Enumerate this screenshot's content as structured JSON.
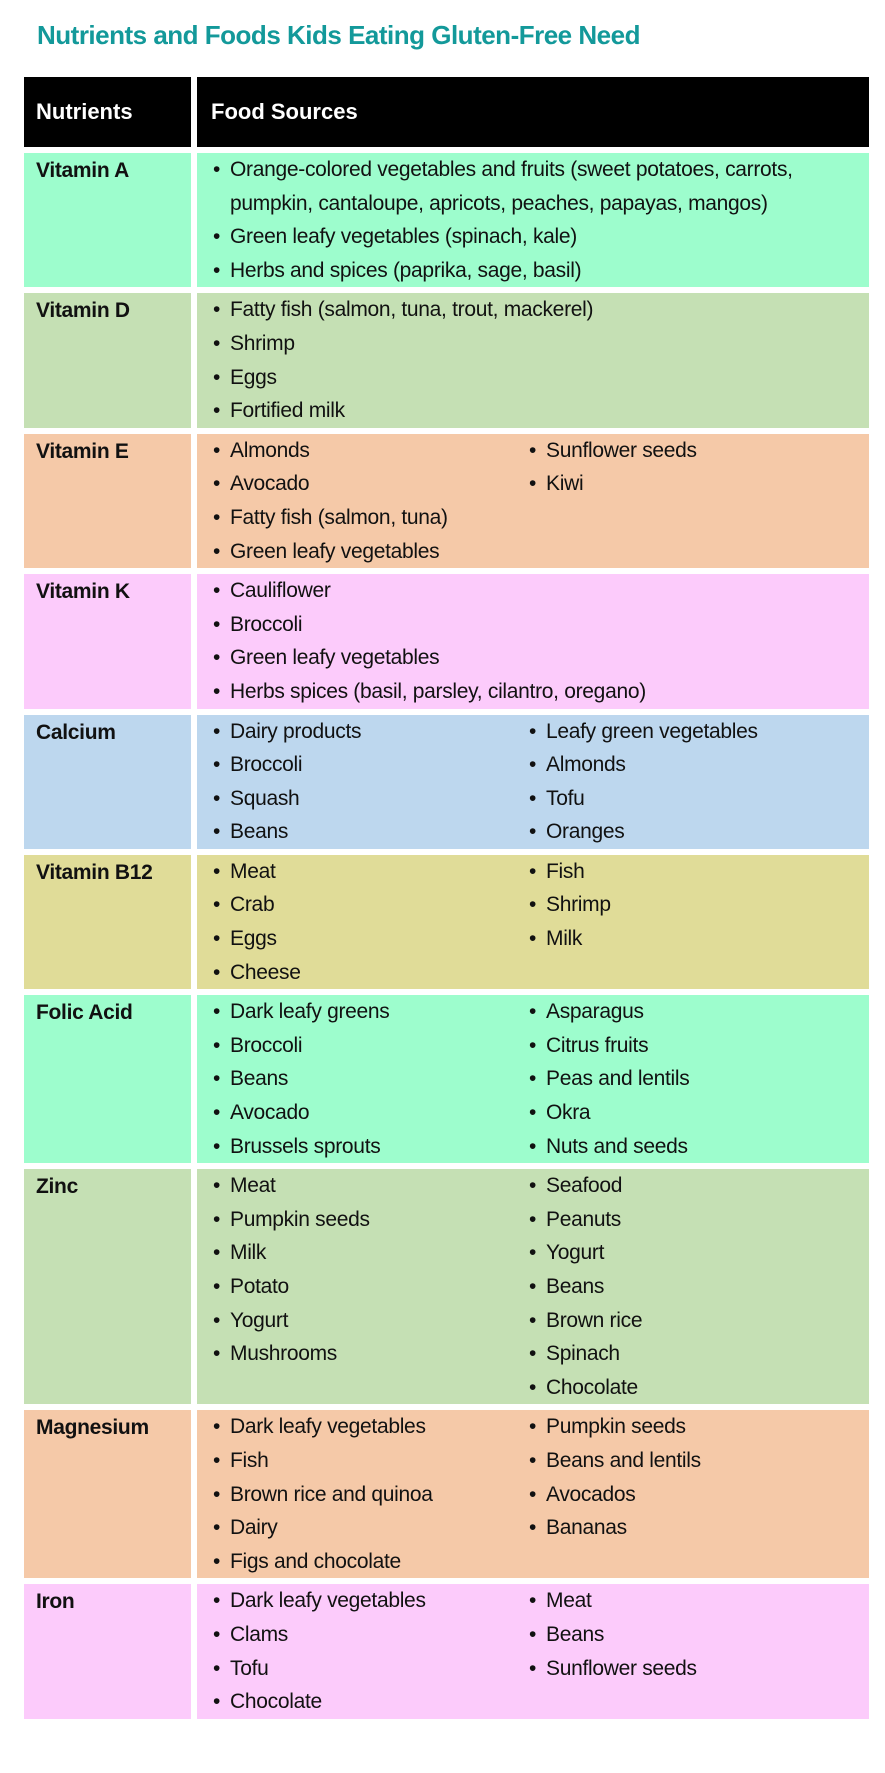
{
  "title": "Nutrients and Foods Kids Eating Gluten-Free Need",
  "header": {
    "nutrients": "Nutrients",
    "food_sources": "Food Sources"
  },
  "colors": {
    "title": "#13999a",
    "header_bg": "#000000"
  },
  "rows": [
    {
      "nutrient": "Vitamin A",
      "color": "#9dfdcd",
      "col1": [
        "Orange-colored vegetables and fruits (sweet potatoes, carrots, pumpkin, cantaloupe, apricots, peaches, papayas, mangos)",
        "Green leafy vegetables (spinach, kale)",
        "Herbs and spices (paprika, sage, basil)"
      ],
      "col2": []
    },
    {
      "nutrient": "Vitamin D",
      "color": "#c5e0b4",
      "col1": [
        "Fatty fish (salmon, tuna, trout, mackerel)",
        "Shrimp",
        "Eggs",
        "Fortified milk"
      ],
      "col2": []
    },
    {
      "nutrient": "Vitamin E",
      "color": "#f5c9a8",
      "col1": [
        "Almonds",
        "Avocado",
        "Fatty fish (salmon, tuna)",
        "Green leafy vegetables"
      ],
      "col2": [
        "Sunflower seeds",
        "Kiwi"
      ]
    },
    {
      "nutrient": "Vitamin K",
      "color": "#fccbfb",
      "col1": [
        "Cauliflower",
        "Broccoli",
        "Green leafy vegetables",
        "Herbs spices (basil, parsley, cilantro, oregano)"
      ],
      "col2": []
    },
    {
      "nutrient": "Calcium",
      "color": "#bdd7ee",
      "col1": [
        "Dairy products",
        "Broccoli",
        "Squash",
        "Beans"
      ],
      "col2": [
        "Leafy green vegetables",
        "Almonds",
        "Tofu",
        "Oranges"
      ]
    },
    {
      "nutrient": "Vitamin B12",
      "color": "#e0dc98",
      "col1": [
        "Meat",
        "Crab",
        "Eggs",
        "Cheese"
      ],
      "col2": [
        "Fish",
        "Shrimp",
        "Milk"
      ]
    },
    {
      "nutrient": "Folic Acid",
      "color": "#9dfdcd",
      "col1": [
        "Dark leafy greens",
        "Broccoli",
        "Beans",
        "Avocado",
        "Brussels sprouts"
      ],
      "col2": [
        "Asparagus",
        "Citrus fruits",
        "Peas and lentils",
        "Okra",
        "Nuts and seeds"
      ]
    },
    {
      "nutrient": "Zinc",
      "color": "#c5e0b4",
      "col1": [
        "Meat",
        "Pumpkin seeds",
        "Milk",
        "Potato",
        "Yogurt",
        "Mushrooms"
      ],
      "col2": [
        "Seafood",
        "Peanuts",
        "Yogurt",
        "Beans",
        "Brown rice",
        "Spinach",
        "Chocolate"
      ]
    },
    {
      "nutrient": "Magnesium",
      "color": "#f5c9a8",
      "col1": [
        "Dark leafy vegetables",
        "Fish",
        "Brown rice and quinoa",
        "Dairy",
        "Figs and chocolate"
      ],
      "col2": [
        "Pumpkin seeds",
        "Beans and lentils",
        "Avocados",
        "Bananas"
      ]
    },
    {
      "nutrient": "Iron",
      "color": "#fccbfb",
      "col1": [
        "Dark leafy vegetables",
        "Clams",
        "Tofu",
        "Chocolate"
      ],
      "col2": [
        "Meat",
        "Beans",
        "Sunflower seeds"
      ]
    }
  ]
}
